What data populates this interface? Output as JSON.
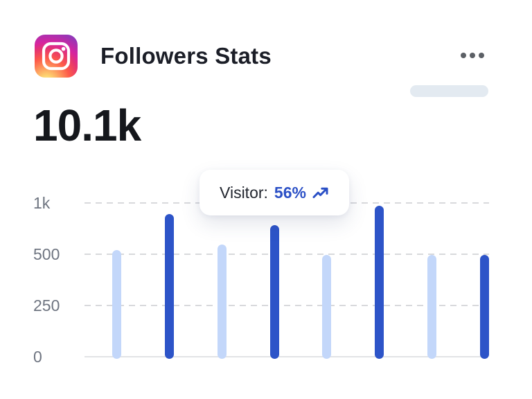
{
  "header": {
    "title": "Followers Stats",
    "app_icon": "instagram-icon",
    "menu_icon": "ellipsis-menu-icon"
  },
  "stats": {
    "total_followers": "10.1k"
  },
  "tooltip": {
    "label": "Visitor:",
    "value": "56%",
    "icon": "trending-up-icon"
  },
  "colors": {
    "bar_light": "#c3d7fa",
    "bar_dark": "#2d54c8",
    "accent_blue": "#2b50c6",
    "pill": "#e3eaf1",
    "grid": "#d8d9dc",
    "axis_text": "#6e7480",
    "title_text": "#1b1e27"
  },
  "chart_data": {
    "type": "bar",
    "title": "Followers Stats",
    "xlabel": "",
    "ylabel": "",
    "categories": [
      "",
      "",
      "",
      "",
      "",
      "",
      "",
      ""
    ],
    "values": [
      550,
      900,
      600,
      790,
      500,
      980,
      500,
      500
    ],
    "bar_styles": [
      "light",
      "dark",
      "light",
      "dark",
      "light",
      "dark",
      "light",
      "dark"
    ],
    "yticks": [
      {
        "label": "1k",
        "value": 1000
      },
      {
        "label": "500",
        "value": 500
      },
      {
        "label": "250",
        "value": 250
      },
      {
        "label": "0",
        "value": 0
      }
    ],
    "ylim": [
      0,
      1000
    ],
    "grid": "horizontal dashed, ticks equally spaced (non-linear scale)",
    "legend": "none",
    "tooltip_bar_index": 3,
    "tooltip_text": "Visitor: 56%"
  }
}
